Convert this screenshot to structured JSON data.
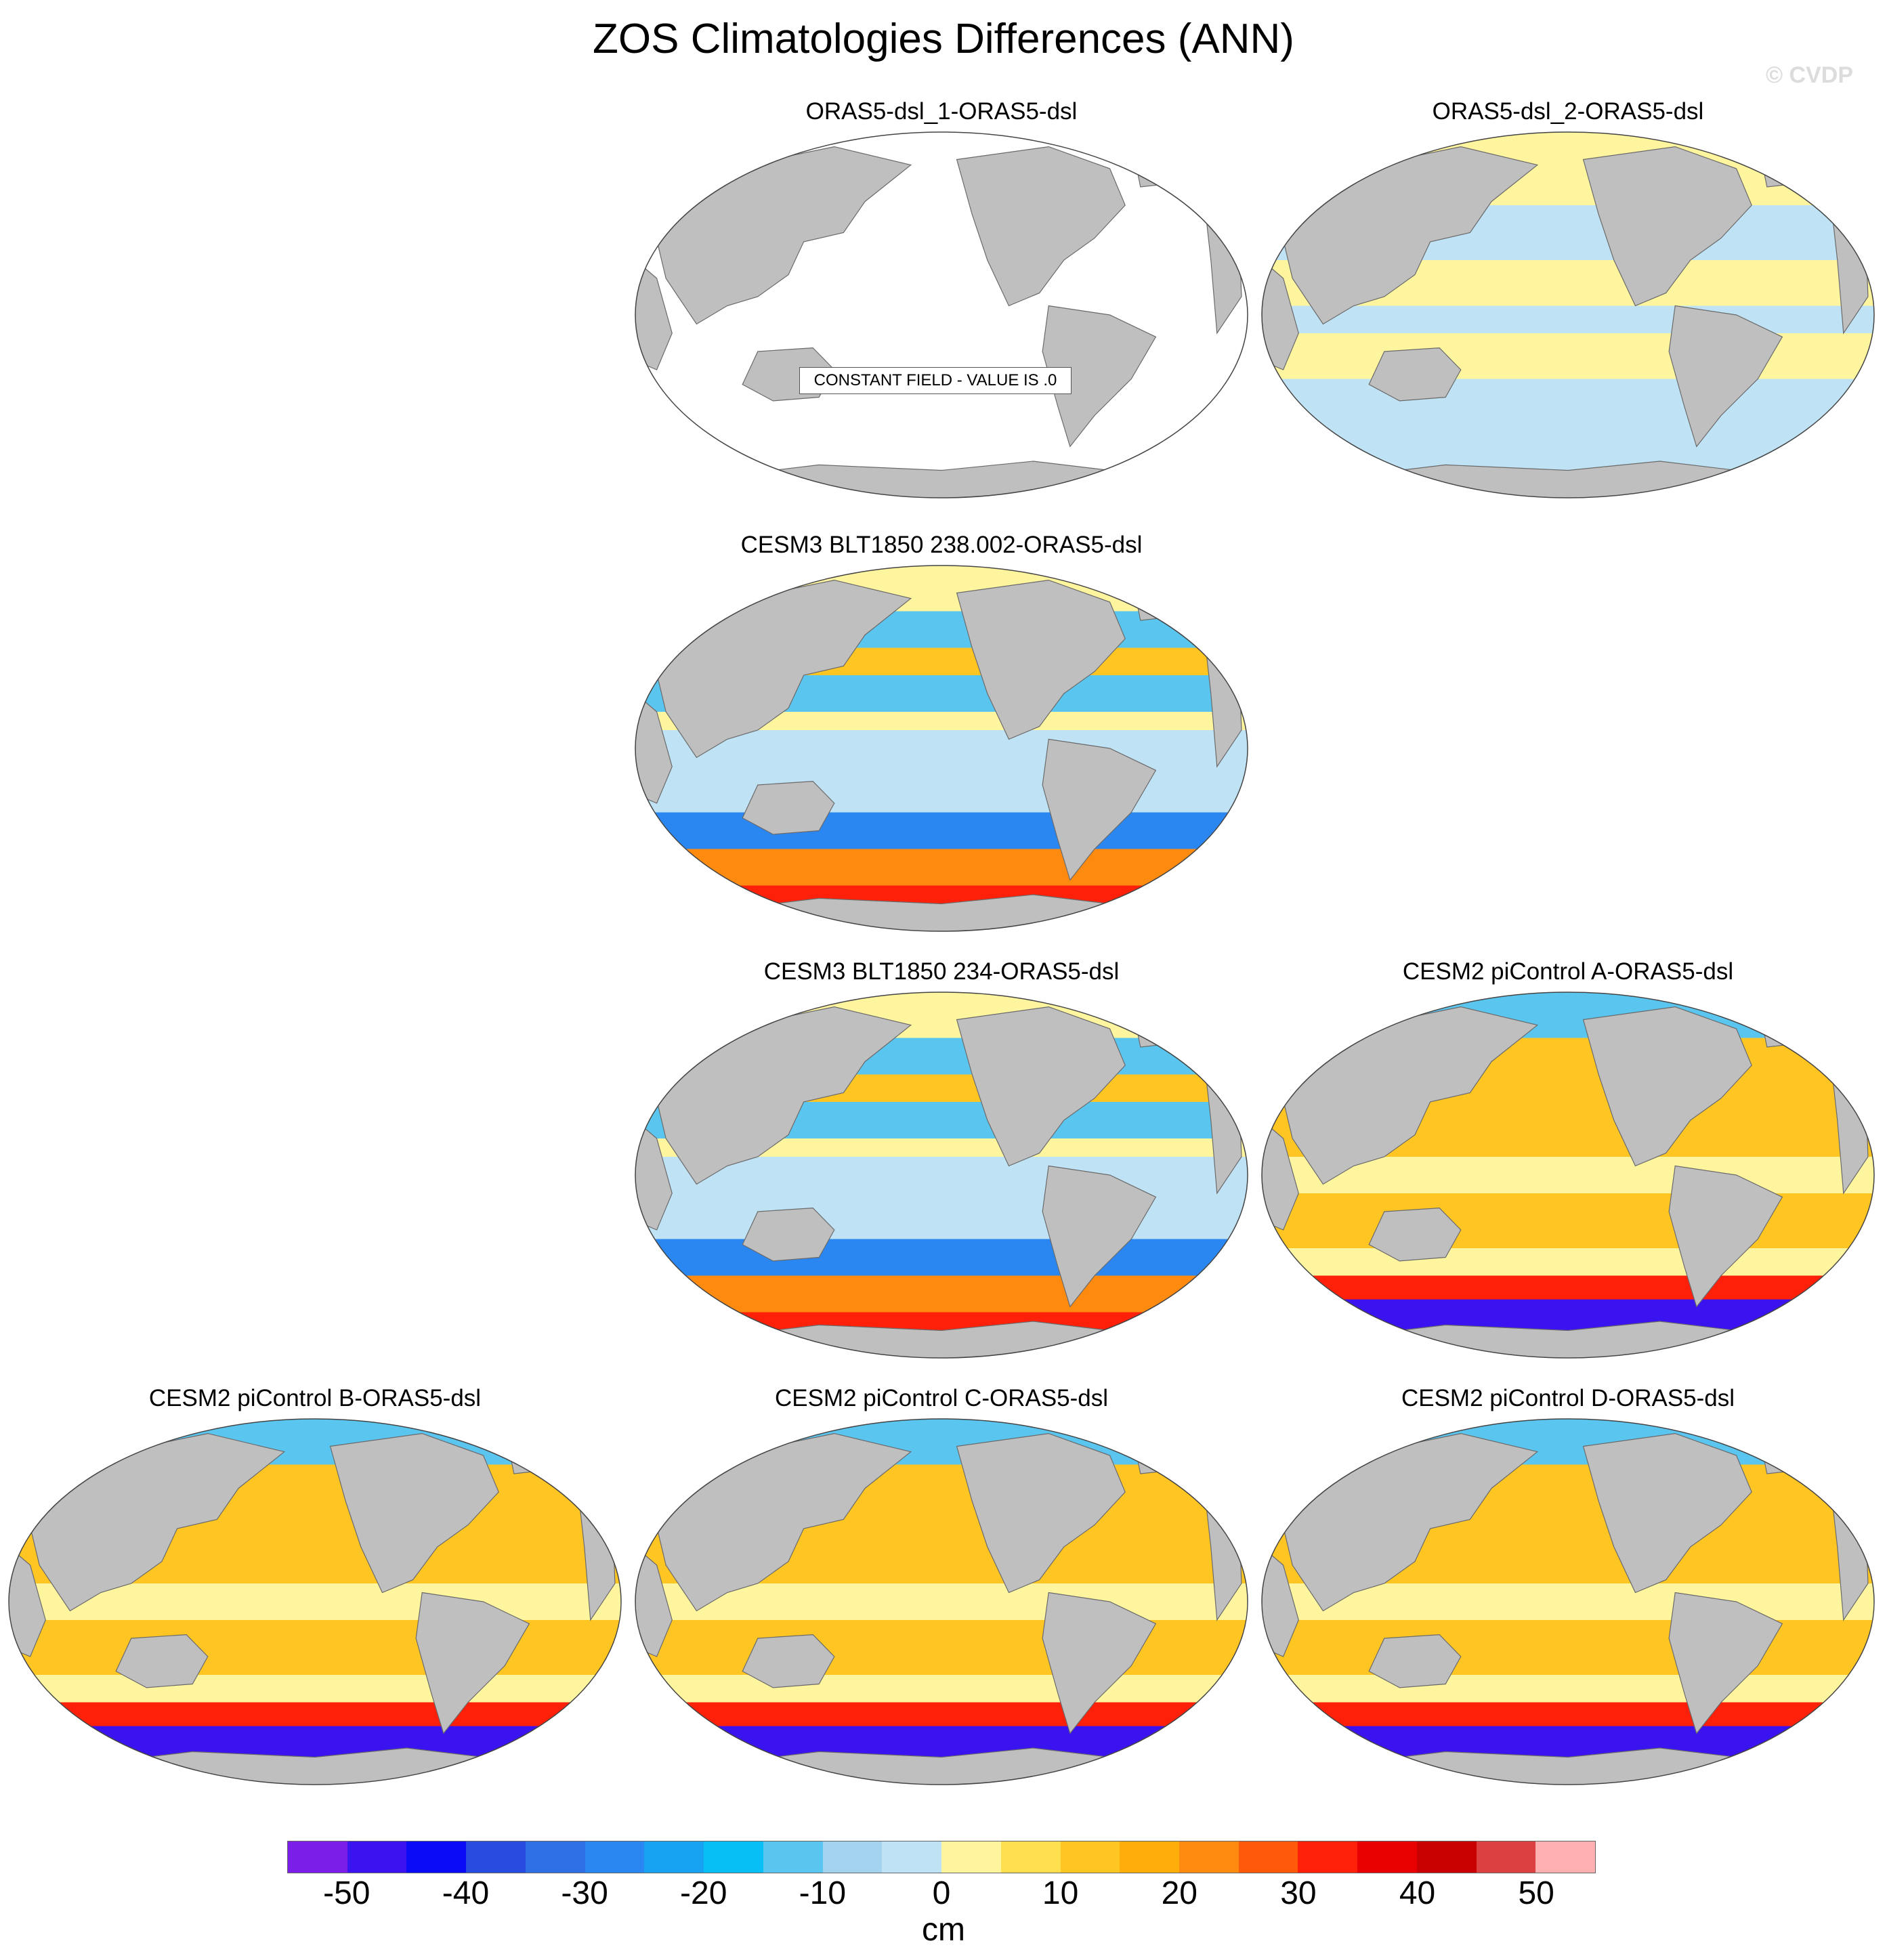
{
  "title": "ZOS Climatologies Differences (ANN)",
  "watermark": "© CVDP",
  "constant_field_note": "CONSTANT FIELD - VALUE IS .0",
  "panels": [
    {
      "id": "p1",
      "title": "ORAS5-dsl_1-ORAS5-dsl",
      "style": "constant"
    },
    {
      "id": "p2",
      "title": "ORAS5-dsl_2-ORAS5-dsl",
      "style": "near-zero"
    },
    {
      "id": "p3",
      "title": "CESM3 BLT1850 238.002-ORAS5-dsl",
      "style": "cesm3"
    },
    {
      "id": "p4",
      "title": "CESM3 BLT1850 234-ORAS5-dsl",
      "style": "cesm3"
    },
    {
      "id": "p5",
      "title": "CESM2 piControl A-ORAS5-dsl",
      "style": "cesm2"
    },
    {
      "id": "p6",
      "title": "CESM2 piControl B-ORAS5-dsl",
      "style": "cesm2"
    },
    {
      "id": "p7",
      "title": "CESM2 piControl C-ORAS5-dsl",
      "style": "cesm2"
    },
    {
      "id": "p8",
      "title": "CESM2 piControl D-ORAS5-dsl",
      "style": "cesm2"
    }
  ],
  "colorbar": {
    "units": "cm",
    "ticks": [
      "-50",
      "-40",
      "-30",
      "-20",
      "-10",
      "0",
      "10",
      "20",
      "30",
      "40",
      "50"
    ],
    "tick_values": [
      -50,
      -40,
      -30,
      -20,
      -10,
      0,
      10,
      20,
      30,
      40,
      50
    ],
    "min": -55,
    "max": 55,
    "colors": [
      "#7b1fe8",
      "#3b12f0",
      "#0b0bf5",
      "#2a4be0",
      "#2f6fe6",
      "#2a86f0",
      "#17a3f2",
      "#08bff5",
      "#5ac6f0",
      "#a3d3ef",
      "#bfe2f4",
      "#fff59e",
      "#ffdf4d",
      "#ffc623",
      "#ffad0a",
      "#ff8a10",
      "#ff5a0a",
      "#ff200a",
      "#e80000",
      "#c80000",
      "#dc4040",
      "#ffb0b0"
    ]
  },
  "palette": {
    "land": "#bfbfbf",
    "ocean_constant": "#ffffff",
    "warm": "#ffc623",
    "yellow": "#fff59e",
    "lightblue": "#bfe2f4",
    "blue": "#5ac6f0",
    "deepblue": "#2a86f0",
    "navy": "#2a4be0",
    "purple": "#3b12f0",
    "red": "#ff200a",
    "orange": "#ff8a10"
  }
}
